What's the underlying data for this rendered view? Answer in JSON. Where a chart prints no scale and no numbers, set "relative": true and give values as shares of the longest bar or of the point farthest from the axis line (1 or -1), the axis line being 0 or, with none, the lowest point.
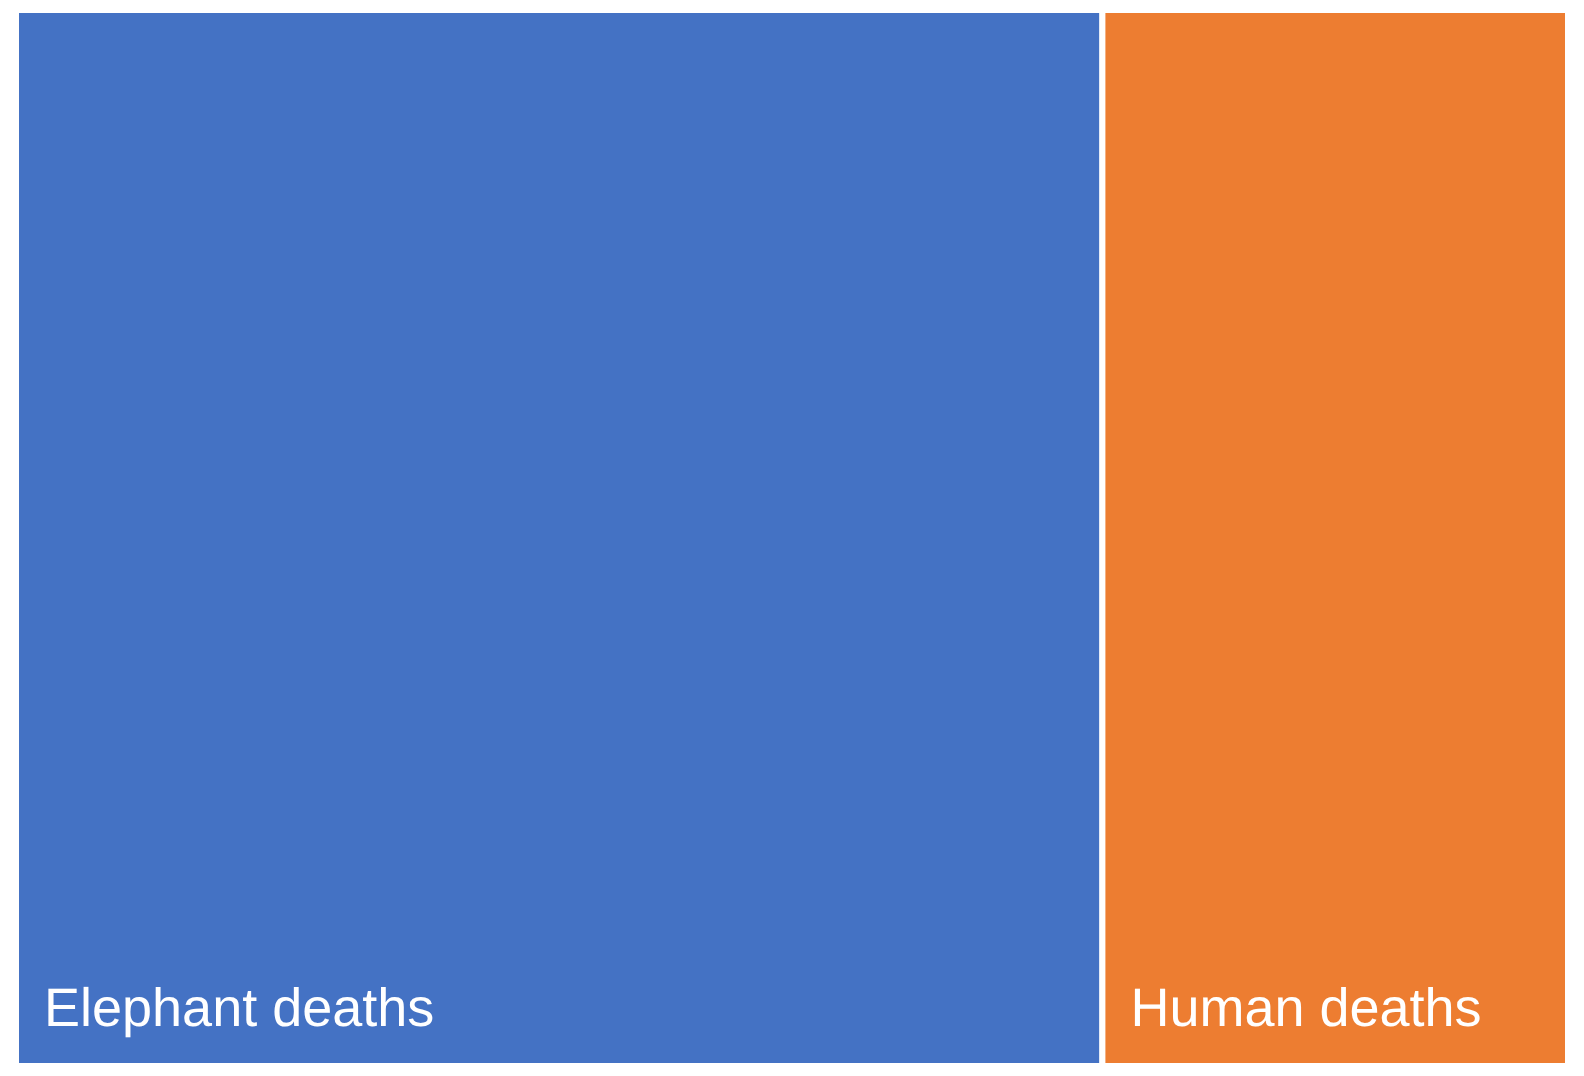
{
  "chart_data": {
    "type": "bar",
    "orientation": "horizontal",
    "stacked": true,
    "relative": true,
    "categories": [
      null
    ],
    "series": [
      {
        "name": "Elephant deaths",
        "color": "#4472c4",
        "values": [
          0.7
        ]
      },
      {
        "name": "Human deaths",
        "color": "#ed7d31",
        "values": [
          0.3
        ]
      }
    ]
  }
}
